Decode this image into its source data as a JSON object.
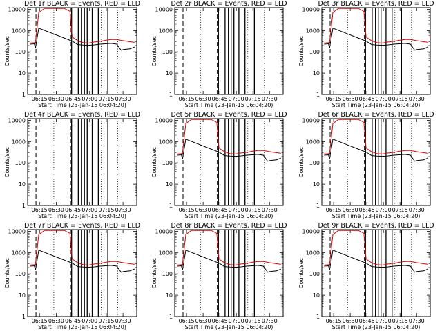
{
  "figure": {
    "subplot_labels": [
      "Det 1r",
      "Det 2r",
      "Det 3r",
      "Det 4r",
      "Det 5r",
      "Det 6r",
      "Det 7r",
      "Det 8r",
      "Det 9r"
    ],
    "title_suffix": "BLACK = Events, RED = LLD",
    "xlabel": "Start Time (23-Jan-15 06:04:20)",
    "ylabel": "Counts/sec"
  },
  "chart_data": {
    "type": "line",
    "n_panels": 9,
    "x_unit": "minutes since 06:04:20",
    "xlim": [
      0,
      98
    ],
    "ylim": [
      1,
      12000
    ],
    "y_scale": "log",
    "xticks": [
      10.67,
      25.67,
      40.67,
      55.67,
      70.67,
      85.67
    ],
    "xtick_labels": [
      "06:15",
      "06:30",
      "06:45",
      "07:00",
      "07:15",
      "07:30"
    ],
    "yticks": [
      1,
      10,
      100,
      1000,
      10000
    ],
    "ytick_labels": [
      "1",
      "10",
      "100",
      "1000",
      "10000"
    ],
    "dashed_markers_x": [
      7.5,
      38.5
    ],
    "dotted_markers_x": [
      23.5,
      66.0,
      81.0
    ],
    "spike_windows_x": [
      39.5,
      45.5,
      48.5,
      51.0,
      53.5,
      58.0,
      63.5,
      72.0
    ],
    "active_panels": [
      1,
      3,
      5,
      6,
      7,
      8,
      9
    ],
    "black_series_x": [
      2,
      6,
      7,
      10,
      40,
      45,
      50,
      55,
      60,
      65,
      70,
      75,
      80,
      84,
      86,
      92,
      96
    ],
    "black_series_y": [
      230,
      240,
      150,
      1300,
      320,
      220,
      210,
      205,
      215,
      230,
      240,
      250,
      230,
      120,
      130,
      140,
      170
    ],
    "red_series_x": [
      2,
      6,
      7,
      10,
      15,
      20,
      28,
      33,
      38,
      40,
      45,
      50,
      55,
      60,
      65,
      70,
      75,
      80,
      85,
      90,
      96
    ],
    "red_series_y": [
      260,
      270,
      280,
      7000,
      11000,
      11000,
      11000,
      11000,
      8000,
      500,
      330,
      270,
      260,
      290,
      310,
      350,
      380,
      380,
      340,
      310,
      280
    ]
  }
}
